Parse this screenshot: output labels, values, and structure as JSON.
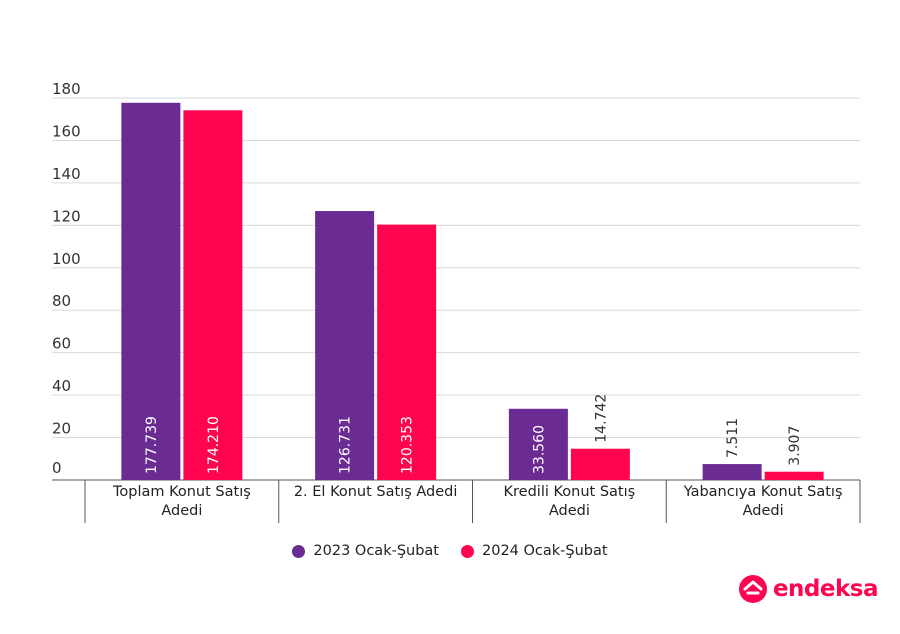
{
  "chart_data": {
    "type": "bar",
    "categories": [
      [
        "Toplam Konut Satış",
        "Adedi"
      ],
      [
        "2. El Konut Satış Adedi"
      ],
      [
        "Kredili Konut Satış",
        "Adedi"
      ],
      [
        "Yabancıya Konut Satış",
        "Adedi"
      ]
    ],
    "series": [
      {
        "name": "2023 Ocak-Şubat",
        "values": [
          177.739,
          126.731,
          33.56,
          7.511
        ],
        "labels": [
          "177.739",
          "126.731",
          "33.560",
          "7.511"
        ],
        "color": "#6a2b93"
      },
      {
        "name": "2024 Ocak-Şubat",
        "values": [
          174.21,
          120.353,
          14.742,
          3.907
        ],
        "labels": [
          "174.210",
          "120.353",
          "14.742",
          "3.907"
        ],
        "color": "#ff0550"
      }
    ],
    "y_ticks": [
      "180",
      "160",
      "140",
      "120",
      "100",
      "80",
      "60",
      "40",
      "20",
      "0"
    ],
    "ylim": [
      0,
      180
    ],
    "grid": true,
    "legend": "bottom-center",
    "title": "",
    "xlabel": "",
    "ylabel": ""
  },
  "brand": {
    "name": "endeksa",
    "color": "#ff0550"
  }
}
